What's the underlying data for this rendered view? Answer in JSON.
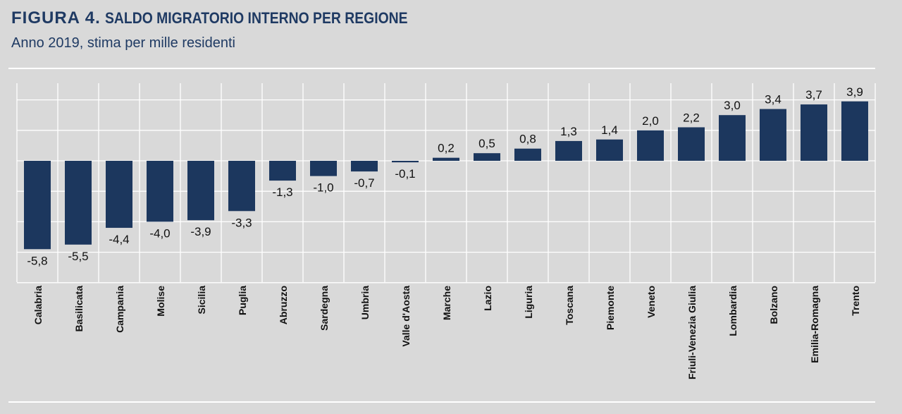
{
  "header": {
    "figure_label": "FIGURA 4.",
    "title": "SALDO MIGRATORIO INTERNO PER REGIONE",
    "subtitle": "Anno 2019, stima per mille residenti"
  },
  "colors": {
    "background": "#d9d9d9",
    "bar": "#1c375e",
    "title": "#1f3a63",
    "grid": "#ffffff"
  },
  "chart_data": {
    "type": "bar",
    "title": "SALDO MIGRATORIO INTERNO PER REGIONE",
    "subtitle": "Anno 2019, stima per mille residenti",
    "categories": [
      "Calabria",
      "Basilicata",
      "Campania",
      "Molise",
      "Sicilia",
      "Puglia",
      "Abruzzo",
      "Sardegna",
      "Umbria",
      "Valle d'Aosta",
      "Marche",
      "Lazio",
      "Liguria",
      "Toscana",
      "Piemonte",
      "Veneto",
      "Friuli-Venezia Giulia",
      "Lombardia",
      "Bolzano",
      "Emilia-Romagna",
      "Trento"
    ],
    "values": [
      -5.8,
      -5.5,
      -4.4,
      -4.0,
      -3.9,
      -3.3,
      -1.3,
      -1.0,
      -0.7,
      -0.1,
      0.2,
      0.5,
      0.8,
      1.3,
      1.4,
      2.0,
      2.2,
      3.0,
      3.4,
      3.7,
      3.9
    ],
    "value_labels": [
      "-5,8",
      "-5,5",
      "-4,4",
      "-4,0",
      "-3,9",
      "-3,3",
      "-1,3",
      "-1,0",
      "-0,7",
      "-0,1",
      "0,2",
      "0,5",
      "0,8",
      "1,3",
      "1,4",
      "2,0",
      "2,2",
      "3,0",
      "3,4",
      "3,7",
      "3,9"
    ],
    "ylim": [
      -8,
      4
    ],
    "grid": true,
    "y_ticks_visible": false,
    "legend": "none"
  }
}
